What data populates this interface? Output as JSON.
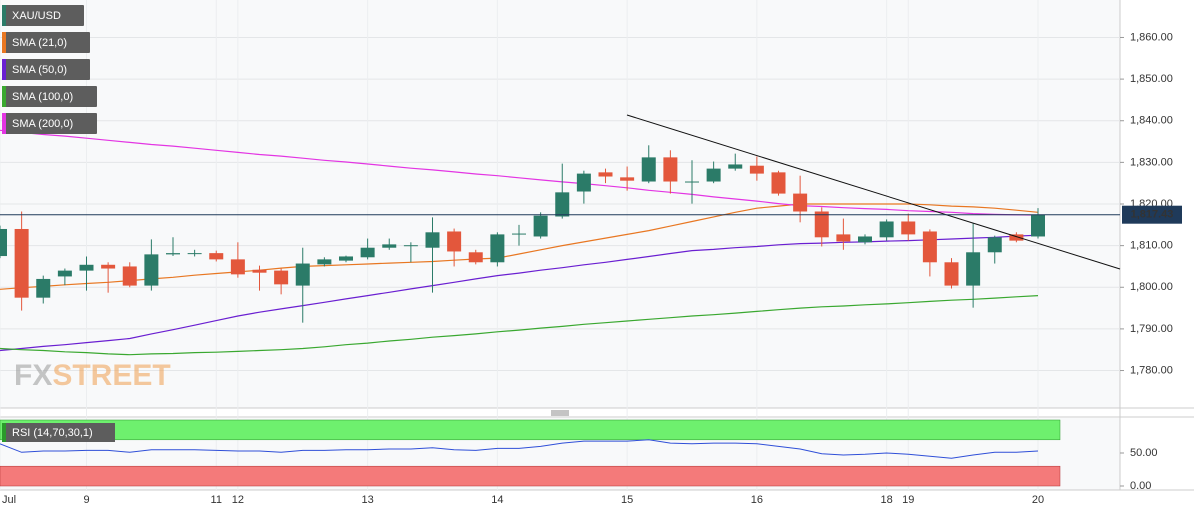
{
  "chart_data": [
    {
      "type": "candlestick",
      "categories": [
        "Jul",
        null,
        null,
        null,
        "9",
        null,
        null,
        null,
        null,
        null,
        "11",
        "12",
        null,
        null,
        null,
        null,
        null,
        "13",
        null,
        null,
        null,
        null,
        null,
        "14",
        null,
        null,
        null,
        null,
        null,
        "15",
        null,
        null,
        null,
        null,
        null,
        "16",
        null,
        null,
        null,
        null,
        null,
        "18",
        "19",
        null,
        null,
        null,
        null,
        null,
        "20"
      ],
      "name": "XAU/USD",
      "up_color": "#2b7b68",
      "down_color": "#e3573c",
      "open": [
        1807.5,
        1814,
        1797.5,
        1802.6,
        1804,
        1805.4,
        1805,
        1800.4,
        1807.9,
        1808,
        1808.2,
        1806.7,
        1804.2,
        1804,
        1800.4,
        1805.5,
        1806.4,
        1807.2,
        1809.5,
        1810,
        1809.5,
        1813.4,
        1808.4,
        1806,
        1812.7,
        1812.2,
        1817,
        1823,
        1827.6,
        1826.4,
        1825.4,
        1831.2,
        1825.2,
        1825.4,
        1828.5,
        1829.2,
        1827.6,
        1822.5,
        1818.2,
        1812.7,
        1810.8,
        1812,
        1815.8,
        1813.4,
        1806,
        1800.4,
        1808.4,
        1812.7,
        1812.2
      ],
      "high": [
        1814.8,
        1818.2,
        1802.8,
        1804.5,
        1807.4,
        1806,
        1806,
        1811.5,
        1812,
        1809,
        1808.8,
        1810.8,
        1805.2,
        1804.5,
        1809.5,
        1807.2,
        1807.6,
        1811.7,
        1811.7,
        1810.8,
        1816.8,
        1814.1,
        1809,
        1813.2,
        1815,
        1818,
        1829.7,
        1828,
        1828.5,
        1829,
        1834.1,
        1832.9,
        1830.5,
        1830.2,
        1832.1,
        1831.4,
        1828,
        1826.8,
        1819.2,
        1816.5,
        1812.7,
        1816.3,
        1817.7,
        1813.9,
        1807,
        1815.3,
        1812.4,
        1813.2,
        1819
      ],
      "low": [
        1807,
        1794.4,
        1796.1,
        1800.5,
        1799.2,
        1798.7,
        1800,
        1799.2,
        1807.5,
        1807.4,
        1806.2,
        1802.3,
        1799.2,
        1798.3,
        1791.5,
        1805,
        1806,
        1806.7,
        1809,
        1806,
        1798.7,
        1805,
        1805.5,
        1805,
        1810,
        1811.7,
        1816.5,
        1820.1,
        1825,
        1823.2,
        1825,
        1822.5,
        1820.1,
        1825,
        1828,
        1825.6,
        1822,
        1815.6,
        1809.8,
        1809,
        1810.3,
        1811.2,
        1811.2,
        1802.6,
        1799.7,
        1795.1,
        1805.7,
        1810.8,
        1811.7
      ],
      "close": [
        1814,
        1797.5,
        1802,
        1804,
        1805.4,
        1804.5,
        1800.4,
        1807.9,
        1808.2,
        1808.2,
        1806.7,
        1803.1,
        1803.5,
        1800.7,
        1805.7,
        1806.7,
        1807.4,
        1809.5,
        1810.3,
        1810.1,
        1813.2,
        1808.6,
        1806,
        1812.7,
        1812.9,
        1817.2,
        1822.8,
        1827.3,
        1826.6,
        1825.6,
        1831.2,
        1825.4,
        1825.4,
        1828.5,
        1829.5,
        1827.3,
        1822.5,
        1818.2,
        1812,
        1811,
        1812.2,
        1815.8,
        1812.7,
        1806,
        1800.4,
        1808.4,
        1812,
        1811.2,
        1817.43
      ],
      "series": [
        {
          "name": "SMA (21,0)",
          "color": "#e87722",
          "values": [
            1799.5,
            1799.9,
            1800.2,
            1800.6,
            1800.9,
            1801.2,
            1801.6,
            1802,
            1802.4,
            1802.9,
            1803.3,
            1803.7,
            1804.1,
            1804.6,
            1805,
            1805.2,
            1805.4,
            1805.6,
            1805.8,
            1806,
            1806.2,
            1806.5,
            1806.8,
            1807,
            1808,
            1809,
            1810,
            1810.9,
            1811.8,
            1812.7,
            1813.6,
            1814.7,
            1815.8,
            1816.9,
            1818,
            1819,
            1819.5,
            1820,
            1820,
            1820,
            1820,
            1820,
            1820,
            1819.8,
            1819.5,
            1819.3,
            1819,
            1818.5,
            1818
          ]
        },
        {
          "name": "SMA (50,0)",
          "color": "#6a1fd1",
          "values": [
            1784.8,
            1785.3,
            1785.8,
            1786.2,
            1786.7,
            1787.2,
            1787.7,
            1788.8,
            1789.8,
            1790.9,
            1792,
            1793.1,
            1794,
            1794.8,
            1795.6,
            1796.4,
            1797.2,
            1798,
            1798.8,
            1799.6,
            1800.4,
            1801.2,
            1802,
            1802.8,
            1803.4,
            1804.1,
            1804.7,
            1805.4,
            1806,
            1806.7,
            1807.4,
            1808.1,
            1808.8,
            1809.1,
            1809.5,
            1809.8,
            1810.2,
            1810.5,
            1810.6,
            1810.8,
            1810.9,
            1811.1,
            1811.2,
            1811.4,
            1811.6,
            1811.8,
            1812,
            1812.3,
            1812.5
          ]
        },
        {
          "name": "SMA (100,0)",
          "color": "#3aa830",
          "values": [
            1785.3,
            1785,
            1784.8,
            1784.5,
            1784.3,
            1784,
            1783.8,
            1784,
            1784.1,
            1784.3,
            1784.4,
            1784.6,
            1784.8,
            1785,
            1785.3,
            1785.7,
            1786.2,
            1786.6,
            1787.1,
            1787.5,
            1788,
            1788.4,
            1788.8,
            1789.3,
            1789.7,
            1790.2,
            1790.6,
            1791.1,
            1791.5,
            1791.9,
            1792.3,
            1792.7,
            1793.1,
            1793.4,
            1793.8,
            1794.2,
            1794.6,
            1795,
            1795.3,
            1795.5,
            1795.8,
            1796,
            1796.3,
            1796.6,
            1796.9,
            1797.1,
            1797.4,
            1797.7,
            1798
          ]
        },
        {
          "name": "SMA (200,0)",
          "color": "#e335e3",
          "values": [
            1837.7,
            1837.2,
            1836.7,
            1836.3,
            1835.8,
            1835.3,
            1834.8,
            1834.3,
            1833.9,
            1833.4,
            1832.9,
            1832.4,
            1831.9,
            1831.5,
            1831,
            1830.5,
            1830.1,
            1829.6,
            1829.1,
            1828.6,
            1828.2,
            1827.7,
            1827.2,
            1826.8,
            1826.3,
            1825.8,
            1825.3,
            1824.9,
            1824.4,
            1823.9,
            1823.3,
            1822.8,
            1822.3,
            1821.7,
            1821.2,
            1820.7,
            1820.1,
            1819.6,
            1819.4,
            1819.1,
            1818.9,
            1818.7,
            1818.4,
            1818.2,
            1818,
            1817.7,
            1817.5,
            1817.4,
            1817.3
          ]
        }
      ],
      "ylim": [
        1771,
        1869
      ],
      "yticks": [
        {
          "value": 1780,
          "label": "1,780.00"
        },
        {
          "value": 1790,
          "label": "1,790.00"
        },
        {
          "value": 1800,
          "label": "1,800.00"
        },
        {
          "value": 1810,
          "label": "1,810.00"
        },
        {
          "value": 1820,
          "label": "1,820.00"
        },
        {
          "value": 1830,
          "label": "1,830.00"
        },
        {
          "value": 1840,
          "label": "1,840.00"
        },
        {
          "value": 1850,
          "label": "1,850.00"
        },
        {
          "value": 1860,
          "label": "1,860.00"
        }
      ],
      "current_price": {
        "value": 1817.43,
        "label": "1,817.43"
      },
      "watermark": [
        "FX",
        "STREET"
      ],
      "grid": true
    },
    {
      "type": "line",
      "series": [
        {
          "name": "RSI (14,70,30,1)",
          "color": "#2f4fd8",
          "values": [
            64,
            51,
            53,
            53,
            54,
            54,
            51,
            55,
            55,
            55,
            54,
            53,
            53,
            51,
            54,
            54,
            55,
            55,
            56,
            56,
            58,
            55,
            54,
            57,
            57,
            60,
            65,
            68,
            68,
            68,
            70,
            65,
            64,
            65,
            65,
            64,
            60,
            56,
            49,
            47,
            48,
            50,
            48,
            45,
            42,
            47,
            51,
            51,
            53
          ]
        }
      ],
      "levels": [
        70,
        30
      ],
      "ylim": [
        0,
        100
      ],
      "yticks": [
        {
          "value": 0,
          "label": "0.00"
        },
        {
          "value": 50,
          "label": "50.00"
        }
      ]
    }
  ]
}
